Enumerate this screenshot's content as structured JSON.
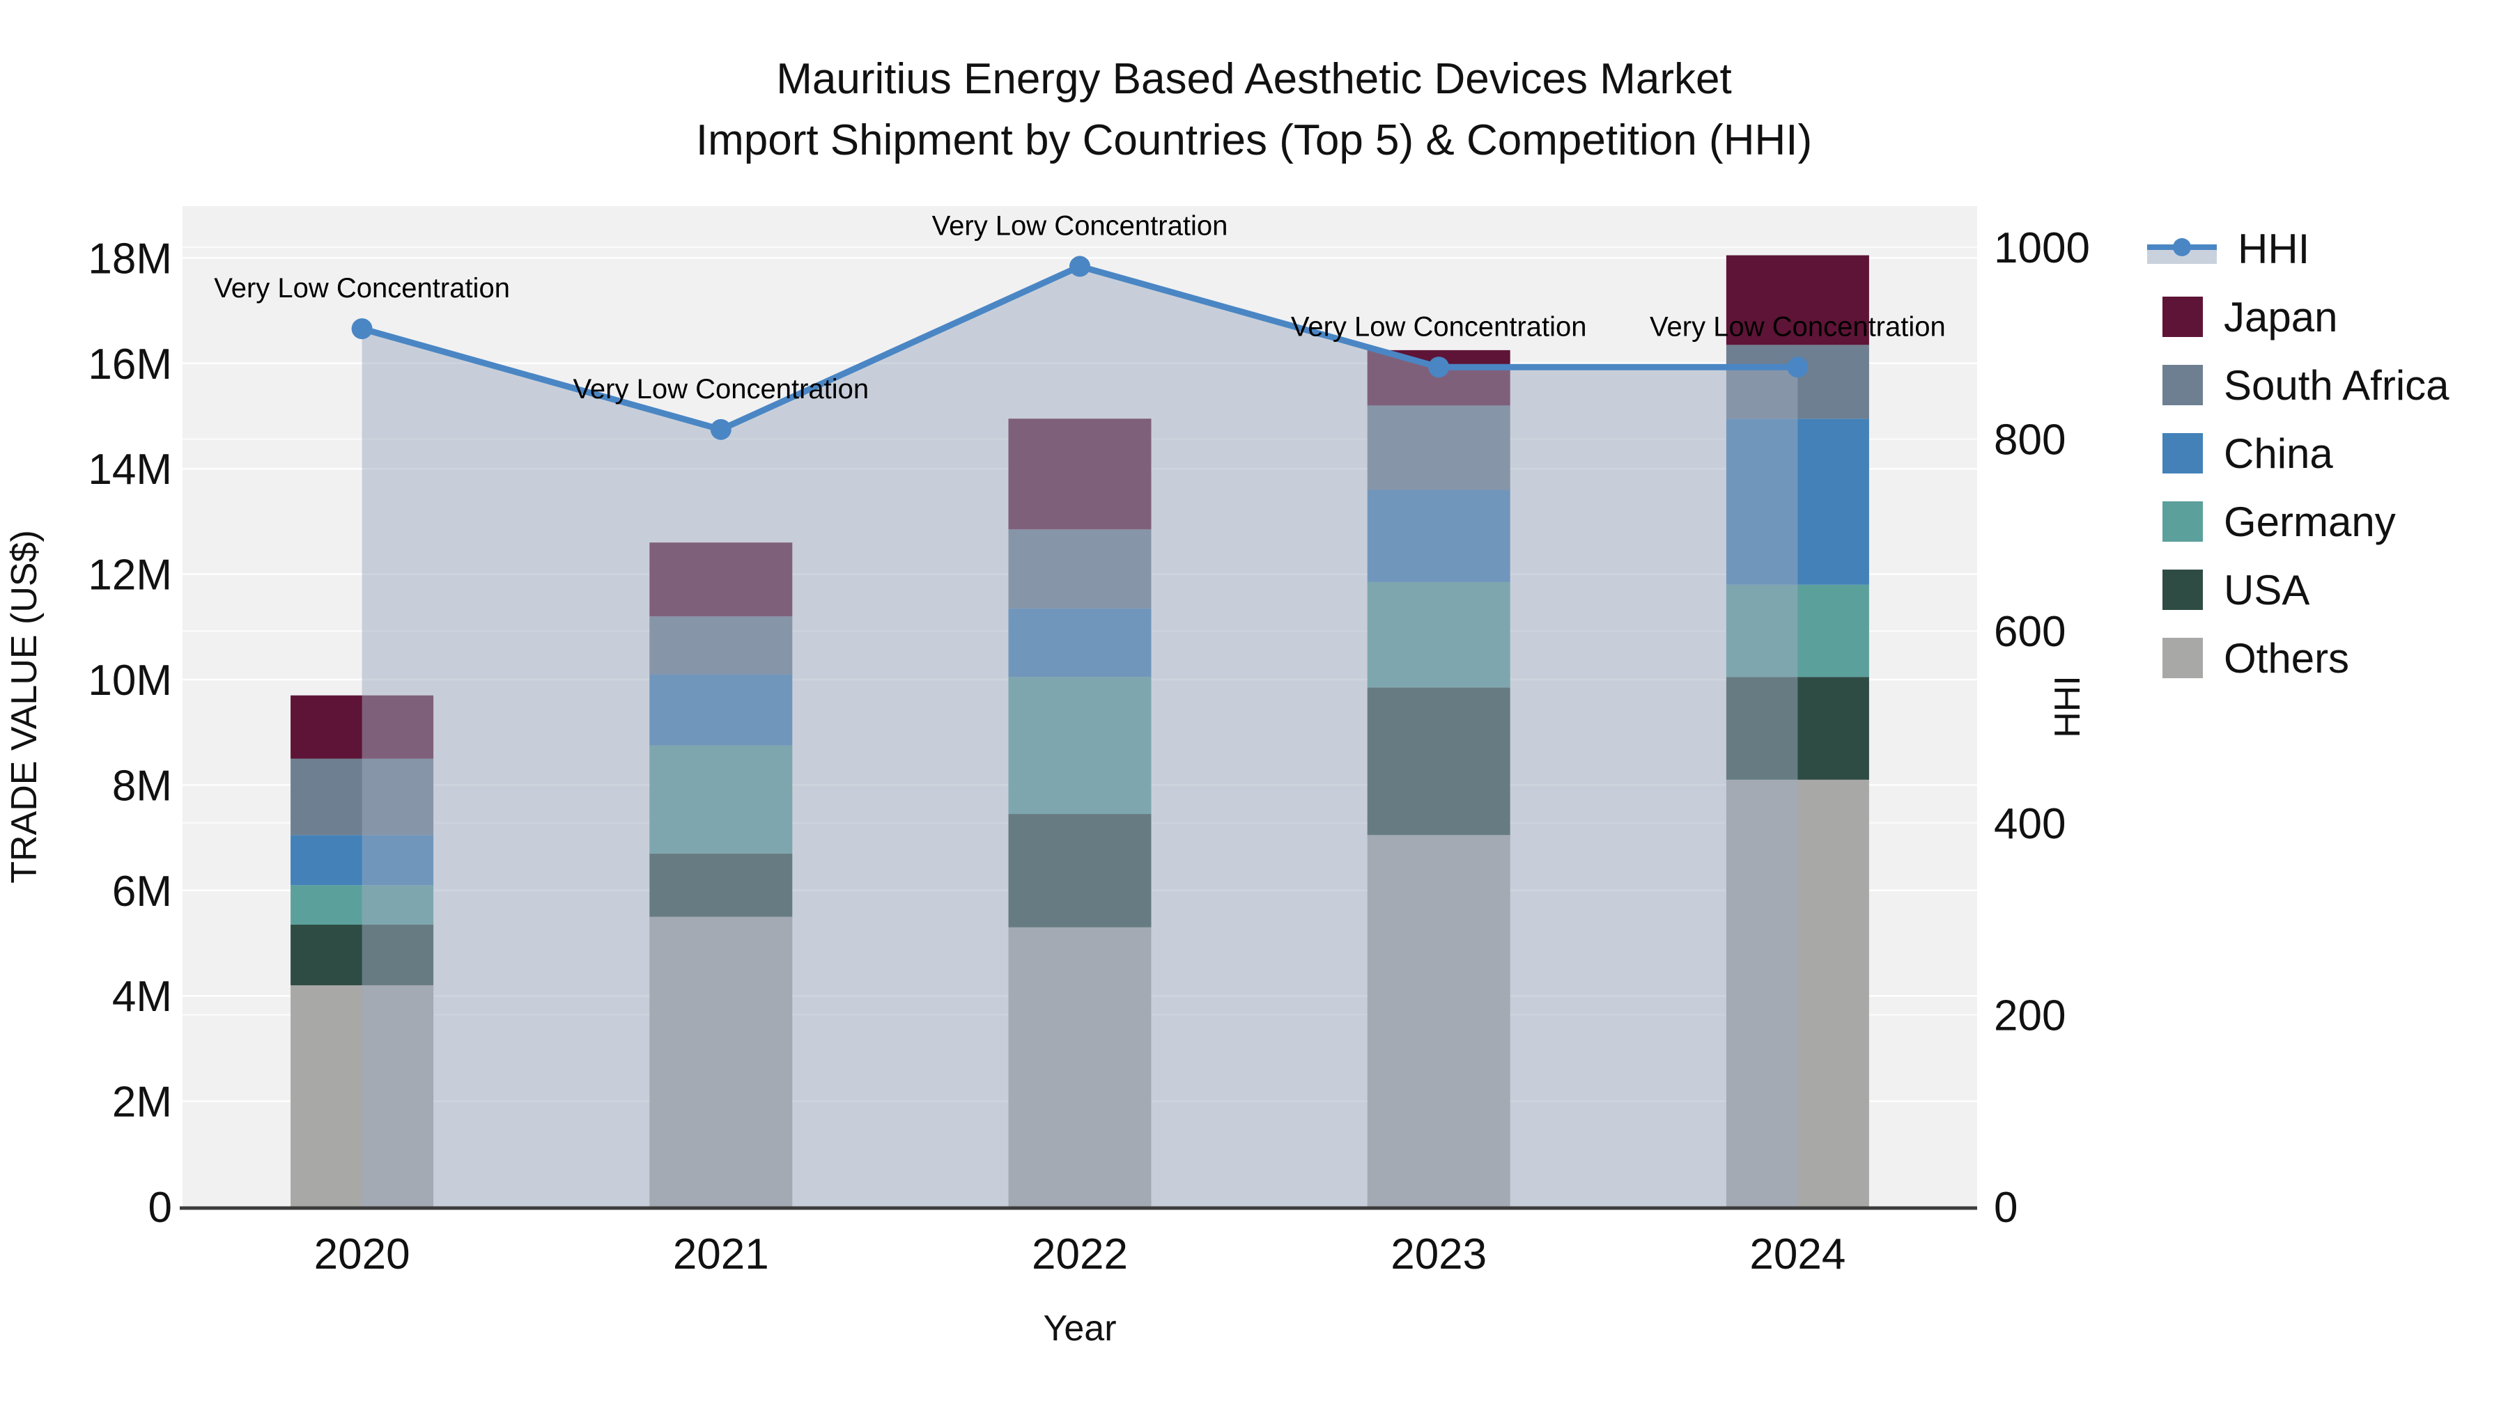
{
  "chart_data": {
    "type": "bar+line",
    "title": "Mauritius Energy Based Aesthetic Devices Market",
    "subtitle": "Import Shipment by Countries (Top 5) & Competition (HHI)",
    "xlabel": "Year",
    "ylabel": "TRADE VALUE (US$)",
    "y2label": "HHI",
    "categories": [
      "2020",
      "2021",
      "2022",
      "2023",
      "2024"
    ],
    "bar_unit": "millions USD",
    "stacked_bars_bottom_to_top": [
      {
        "name": "Others",
        "color": "#a8a8a6",
        "values_musd": [
          4.2,
          5.5,
          5.3,
          7.05,
          8.1
        ]
      },
      {
        "name": "USA",
        "color": "#2f4c44",
        "values_musd": [
          1.15,
          1.2,
          2.15,
          2.8,
          1.95
        ]
      },
      {
        "name": "Germany",
        "color": "#5ca09c",
        "values_musd": [
          0.75,
          2.05,
          2.6,
          2.0,
          1.75
        ]
      },
      {
        "name": "China",
        "color": "#4381b8",
        "values_musd": [
          0.95,
          1.35,
          1.3,
          1.75,
          3.15
        ]
      },
      {
        "name": "South Africa",
        "color": "#6e7f91",
        "values_musd": [
          1.45,
          1.1,
          1.5,
          1.6,
          1.4
        ]
      },
      {
        "name": "Japan",
        "color": "#5e1436",
        "values_musd": [
          1.2,
          1.4,
          2.1,
          1.05,
          1.7
        ]
      }
    ],
    "bar_totals_musd": [
      9.7,
      12.6,
      14.95,
      16.25,
      18.05
    ],
    "line_series": {
      "name": "HHI",
      "axis": "right",
      "color": "#4a86c4",
      "fill_color": "rgba(160,172,192,0.5)",
      "values": [
        915,
        810,
        980,
        875,
        875
      ]
    },
    "annotations": [
      {
        "x": "2020",
        "text": "Very Low Concentration"
      },
      {
        "x": "2021",
        "text": "Very Low Concentration"
      },
      {
        "x": "2022",
        "text": "Very Low Concentration"
      },
      {
        "x": "2023",
        "text": "Very Low Concentration"
      },
      {
        "x": "2024",
        "text": "Very Low Concentration"
      }
    ],
    "y_axis": {
      "tick_labels": [
        "0",
        "2M",
        "4M",
        "6M",
        "8M",
        "10M",
        "12M",
        "14M",
        "16M",
        "18M"
      ],
      "tick_step_musd": 2,
      "range_musd": [
        0,
        19
      ]
    },
    "y2_axis": {
      "tick_labels": [
        "0",
        "200",
        "400",
        "600",
        "800",
        "1000"
      ],
      "tick_step": 200,
      "range": [
        0,
        1040
      ]
    },
    "legend_order": [
      "HHI",
      "Japan",
      "South Africa",
      "China",
      "Germany",
      "USA",
      "Others"
    ],
    "plot_bg": "#f1f1f2",
    "grid_color": "#ffffff",
    "axisline_color": "#3c3c3c",
    "text_color": "#111111"
  }
}
